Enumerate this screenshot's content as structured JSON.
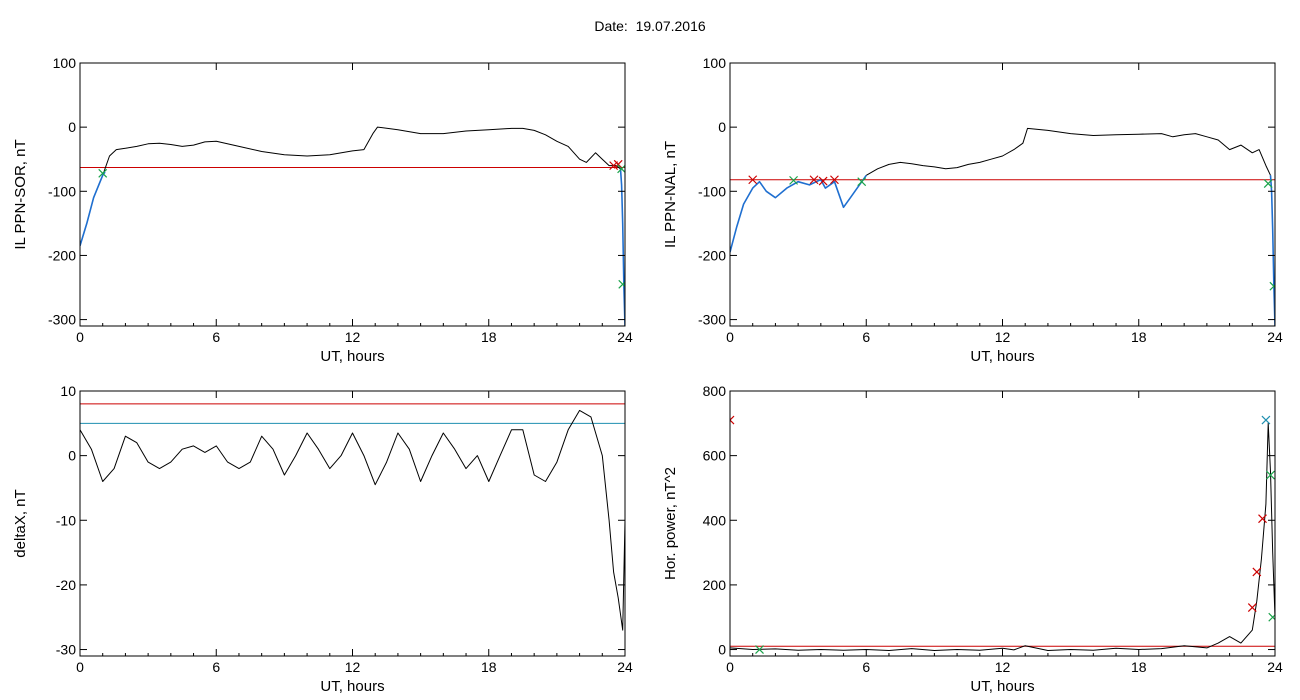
{
  "header": {
    "date_label": "Date:",
    "date_value": "19.07.2016"
  },
  "chart_data": [
    {
      "type": "line",
      "xlabel": "UT, hours",
      "ylabel": "IL PPN-SOR, nT",
      "xlim": [
        0,
        24
      ],
      "ylim": [
        -310,
        100
      ],
      "xticks": [
        0,
        6,
        12,
        18,
        24
      ],
      "yticks": [
        -300,
        -200,
        -100,
        0,
        100
      ],
      "threshold_lines": [
        {
          "y": -63,
          "color": "#cc0000"
        }
      ],
      "series": [
        {
          "color": "#000000",
          "x": [
            0,
            0.3,
            0.6,
            1,
            1.3,
            1.6,
            2,
            2.5,
            3,
            3.5,
            4,
            4.5,
            5,
            5.5,
            6,
            7,
            8,
            9,
            10,
            11,
            12,
            12.5,
            12.9,
            13.1,
            14,
            15,
            16,
            17,
            18,
            19,
            19.5,
            20,
            20.5,
            21,
            21.5,
            22,
            22.3,
            22.7,
            23,
            23.3,
            23.6,
            23.8
          ],
          "y": [
            -185,
            -150,
            -110,
            -75,
            -45,
            -35,
            -33,
            -30,
            -26,
            -25,
            -27,
            -30,
            -28,
            -23,
            -22,
            -30,
            -38,
            -43,
            -45,
            -43,
            -37,
            -35,
            -10,
            0,
            -4,
            -10,
            -10,
            -6,
            -4,
            -2,
            -2,
            -5,
            -12,
            -22,
            -30,
            -50,
            -55,
            -40,
            -50,
            -60,
            -60,
            -65
          ]
        },
        {
          "color": "#1f6fd0",
          "x": [
            0,
            0.3,
            0.6,
            1,
            1.1
          ],
          "y": [
            -185,
            -150,
            -110,
            -75,
            -70
          ]
        },
        {
          "color": "#1f6fd0",
          "x": [
            23.8,
            23.85,
            23.9,
            23.95,
            24
          ],
          "y": [
            -65,
            -90,
            -150,
            -250,
            -310
          ]
        }
      ],
      "markers": [
        {
          "x": 1.0,
          "y": -72,
          "color": "#1aa34a"
        },
        {
          "x": 23.5,
          "y": -60,
          "color": "#cc0000"
        },
        {
          "x": 23.7,
          "y": -58,
          "color": "#cc0000"
        },
        {
          "x": 23.85,
          "y": -65,
          "color": "#1aa34a"
        },
        {
          "x": 23.9,
          "y": -245,
          "color": "#1aa34a"
        }
      ]
    },
    {
      "type": "line",
      "xlabel": "UT, hours",
      "ylabel": "IL PPN-NAL, nT",
      "xlim": [
        0,
        24
      ],
      "ylim": [
        -310,
        100
      ],
      "xticks": [
        0,
        6,
        12,
        18,
        24
      ],
      "yticks": [
        -300,
        -200,
        -100,
        0,
        100
      ],
      "threshold_lines": [
        {
          "y": -82,
          "color": "#cc0000"
        }
      ],
      "series": [
        {
          "color": "#000000",
          "x": [
            6,
            6.5,
            7,
            7.5,
            8,
            8.5,
            9,
            9.5,
            10,
            10.5,
            11,
            11.5,
            12,
            12.5,
            12.9,
            13.1,
            14,
            15,
            16,
            17,
            18,
            19,
            19.5,
            20,
            20.5,
            21,
            21.5,
            22,
            22.5,
            23,
            23.3,
            23.6,
            23.8
          ],
          "y": [
            -75,
            -65,
            -58,
            -55,
            -57,
            -60,
            -62,
            -65,
            -63,
            -58,
            -55,
            -50,
            -45,
            -35,
            -25,
            -2,
            -5,
            -10,
            -13,
            -12,
            -11,
            -10,
            -15,
            -12,
            -10,
            -15,
            -20,
            -35,
            -28,
            -40,
            -35,
            -60,
            -75
          ]
        },
        {
          "color": "#1f6fd0",
          "x": [
            0,
            0.3,
            0.6,
            1,
            1.3,
            1.6,
            2,
            2.5,
            3,
            3.5,
            3.8,
            4,
            4.2,
            4.6,
            5,
            5.3,
            5.6,
            6
          ],
          "y": [
            -195,
            -155,
            -120,
            -95,
            -85,
            -100,
            -110,
            -95,
            -85,
            -90,
            -85,
            -82,
            -95,
            -85,
            -125,
            -110,
            -95,
            -75
          ]
        },
        {
          "color": "#1f6fd0",
          "x": [
            23.8,
            23.85,
            23.9,
            23.95,
            24
          ],
          "y": [
            -75,
            -100,
            -160,
            -250,
            -310
          ]
        }
      ],
      "markers": [
        {
          "x": 1.0,
          "y": -82,
          "color": "#cc0000"
        },
        {
          "x": 2.8,
          "y": -83,
          "color": "#1aa34a"
        },
        {
          "x": 3.7,
          "y": -82,
          "color": "#cc0000"
        },
        {
          "x": 4.1,
          "y": -84,
          "color": "#cc0000"
        },
        {
          "x": 4.6,
          "y": -82,
          "color": "#cc0000"
        },
        {
          "x": 5.8,
          "y": -85,
          "color": "#1aa34a"
        },
        {
          "x": 23.7,
          "y": -88,
          "color": "#1aa34a"
        },
        {
          "x": 23.95,
          "y": -248,
          "color": "#1aa34a"
        }
      ]
    },
    {
      "type": "line",
      "xlabel": "UT, hours",
      "ylabel": "deltaX, nT",
      "xlim": [
        0,
        24
      ],
      "ylim": [
        -31,
        10
      ],
      "xticks": [
        0,
        6,
        12,
        18,
        24
      ],
      "yticks": [
        -30,
        -20,
        -10,
        0,
        10
      ],
      "threshold_lines": [
        {
          "y": 8,
          "color": "#cc0000"
        },
        {
          "y": 5,
          "color": "#1f8fb0"
        }
      ],
      "series": [
        {
          "color": "#000000",
          "x": [
            0,
            0.5,
            1,
            1.5,
            2,
            2.5,
            3,
            3.5,
            4,
            4.5,
            5,
            5.5,
            6,
            6.5,
            7,
            7.5,
            8,
            8.5,
            9,
            9.5,
            10,
            10.5,
            11,
            11.5,
            12,
            12.5,
            13,
            13.5,
            14,
            14.5,
            15,
            15.5,
            16,
            16.5,
            17,
            17.5,
            18,
            18.5,
            19,
            19.5,
            20,
            20.5,
            21,
            21.5,
            22,
            22.5,
            23,
            23.3,
            23.5,
            23.7,
            23.9,
            24
          ],
          "y": [
            4,
            1,
            -4,
            -2,
            3,
            2,
            -1,
            -2,
            -1,
            1,
            1.5,
            0.5,
            1.5,
            -1,
            -2,
            -1,
            3,
            1,
            -3,
            0,
            3.5,
            1,
            -2,
            0,
            3.5,
            0,
            -4.5,
            -1,
            3.5,
            1,
            -4,
            0,
            3.5,
            1,
            -2,
            0,
            -4,
            0,
            4,
            4,
            -3,
            -4,
            -1,
            4,
            7,
            6,
            0,
            -10,
            -18,
            -22,
            -27,
            -10
          ]
        }
      ],
      "markers": []
    },
    {
      "type": "line",
      "xlabel": "UT, hours",
      "ylabel": "Hor. power, nT^2",
      "xlim": [
        0,
        24
      ],
      "ylim": [
        -20,
        800
      ],
      "xticks": [
        0,
        6,
        12,
        18,
        24
      ],
      "yticks": [
        0,
        200,
        400,
        600,
        800
      ],
      "threshold_lines": [
        {
          "y": 10,
          "color": "#cc0000"
        }
      ],
      "series": [
        {
          "color": "#000000",
          "x": [
            0,
            1,
            2,
            3,
            4,
            5,
            6,
            7,
            8,
            9,
            10,
            11,
            12,
            12.5,
            13,
            14,
            15,
            16,
            17,
            18,
            19,
            20,
            21,
            21.5,
            22,
            22.5,
            23,
            23.2,
            23.4,
            23.6,
            23.7,
            23.8,
            23.9,
            24
          ],
          "y": [
            5,
            0,
            2,
            -2,
            0,
            -2,
            0,
            -3,
            3,
            -3,
            0,
            -2,
            4,
            -1,
            12,
            -3,
            0,
            -2,
            4,
            0,
            3,
            12,
            5,
            20,
            40,
            20,
            60,
            150,
            280,
            450,
            700,
            550,
            300,
            100
          ]
        }
      ],
      "markers": [
        {
          "x": 0.0,
          "y": 710,
          "color": "#cc0000"
        },
        {
          "x": 1.3,
          "y": 0,
          "color": "#1aa34a"
        },
        {
          "x": 23.0,
          "y": 130,
          "color": "#cc0000"
        },
        {
          "x": 23.2,
          "y": 240,
          "color": "#cc0000"
        },
        {
          "x": 23.45,
          "y": 405,
          "color": "#cc0000"
        },
        {
          "x": 23.6,
          "y": 710,
          "color": "#1f8fb0"
        },
        {
          "x": 23.8,
          "y": 540,
          "color": "#1aa34a"
        },
        {
          "x": 23.9,
          "y": 100,
          "color": "#1aa34a"
        }
      ]
    }
  ]
}
